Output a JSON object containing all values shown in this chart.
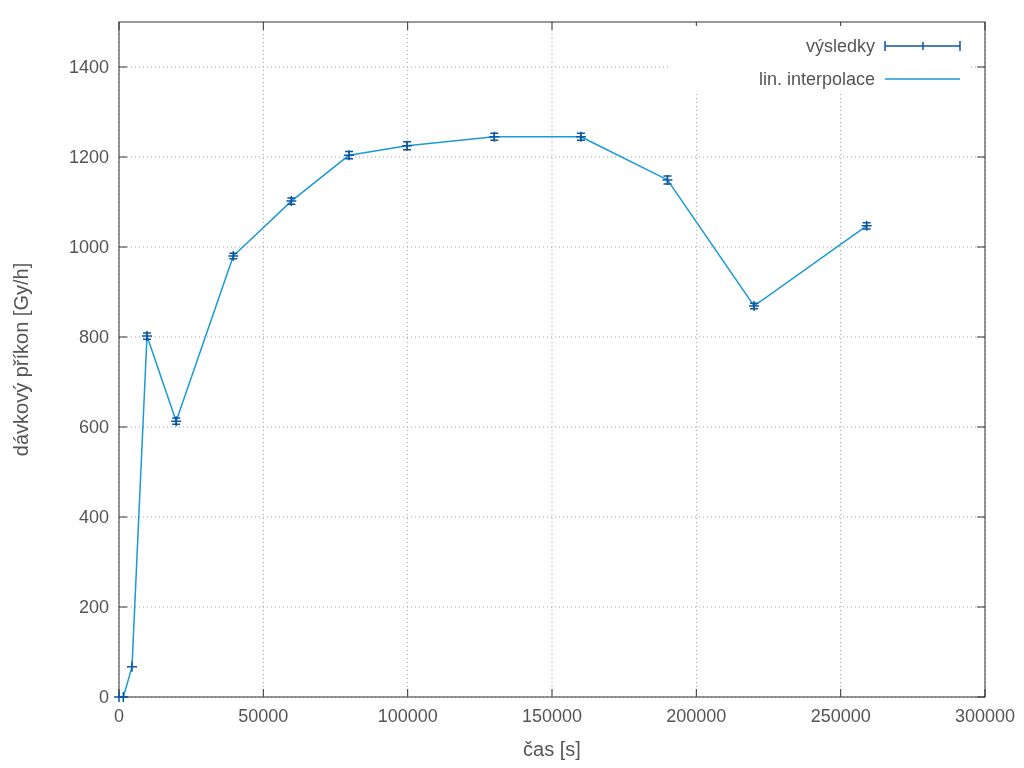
{
  "chart_data": {
    "type": "line",
    "xlabel": "čas [s]",
    "ylabel": "dávkový příkon [Gy/h]",
    "xlim": [
      0,
      300000
    ],
    "xticks": [
      0,
      50000,
      100000,
      150000,
      200000,
      250000,
      300000
    ],
    "ylim": [
      0,
      1500
    ],
    "yticks": [
      0,
      200,
      400,
      600,
      800,
      1000,
      1200,
      1400
    ],
    "grid": true,
    "legend": "top right",
    "marker": "cross",
    "series": [
      {
        "name": "výsledky",
        "type": "scatter",
        "color": "#0b57a4",
        "x": [
          0,
          1500,
          4500,
          9700,
          19800,
          39600,
          59700,
          79700,
          99800,
          130000,
          160000,
          190000,
          220000,
          259000
        ],
        "values": [
          0,
          0,
          67,
          802,
          613,
          980,
          1102,
          1204,
          1225,
          1245,
          1245,
          1149,
          869,
          1047
        ],
        "errors": [
          null,
          null,
          null,
          7,
          7,
          6,
          7,
          8,
          9,
          8,
          8,
          9,
          6,
          7
        ]
      },
      {
        "name": "lin. interpolace",
        "color": "#1a9ad6",
        "x": [
          0,
          1500,
          4500,
          9700,
          19800,
          39600,
          59700,
          79700,
          99800,
          130000,
          160000,
          190000,
          220000,
          259000
        ],
        "values": [
          0,
          0,
          67,
          802,
          613,
          980,
          1102,
          1204,
          1225,
          1245,
          1245,
          1149,
          869,
          1047
        ]
      }
    ]
  }
}
